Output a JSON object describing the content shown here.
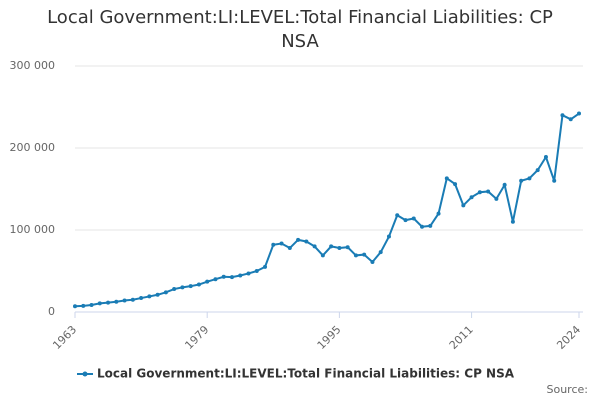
{
  "chart_data": {
    "type": "line",
    "title": "Local Government:LI:LEVEL:Total Financial Liabilities: CP NSA",
    "x": [
      1963,
      1964,
      1965,
      1966,
      1967,
      1968,
      1969,
      1970,
      1971,
      1972,
      1973,
      1974,
      1975,
      1976,
      1977,
      1978,
      1979,
      1980,
      1981,
      1982,
      1983,
      1984,
      1985,
      1986,
      1987,
      1988,
      1989,
      1990,
      1991,
      1992,
      1993,
      1994,
      1995,
      1996,
      1997,
      1998,
      1999,
      2000,
      2001,
      2002,
      2003,
      2004,
      2005,
      2006,
      2007,
      2008,
      2009,
      2010,
      2011,
      2012,
      2013,
      2014,
      2015,
      2016,
      2017,
      2018,
      2019,
      2020,
      2021,
      2022,
      2023,
      2024
    ],
    "series": [
      {
        "name": "Local Government:LI:LEVEL:Total Financial Liabilities: CP NSA",
        "color": "#1a7cb5",
        "values": [
          7000,
          7500,
          8500,
          10500,
          11500,
          12500,
          14000,
          15000,
          17000,
          19000,
          21000,
          24000,
          28000,
          30000,
          31500,
          33500,
          37000,
          40000,
          43000,
          42500,
          44500,
          47000,
          50000,
          55000,
          82000,
          83500,
          78000,
          88000,
          86000,
          80000,
          69000,
          80000,
          78000,
          79000,
          69000,
          70000,
          61000,
          73000,
          92000,
          118000,
          112000,
          114000,
          104000,
          105000,
          120000,
          163000,
          156000,
          130000,
          140000,
          146000,
          147000,
          138000,
          155000,
          110000,
          160000,
          163000,
          173000,
          189000,
          160000,
          240000,
          235000,
          242000
        ]
      }
    ],
    "xlim": [
      1963,
      2024
    ],
    "xticks": [
      1963,
      1979,
      1995,
      2011,
      2024
    ],
    "ylim": [
      0,
      300000
    ],
    "yticks": [
      0,
      {
        "value": 100000,
        "label": "100 000"
      },
      {
        "value": 200000,
        "label": "200 000"
      },
      {
        "value": 300000,
        "label": "300 000"
      }
    ],
    "grid": true,
    "source": "Source:"
  }
}
